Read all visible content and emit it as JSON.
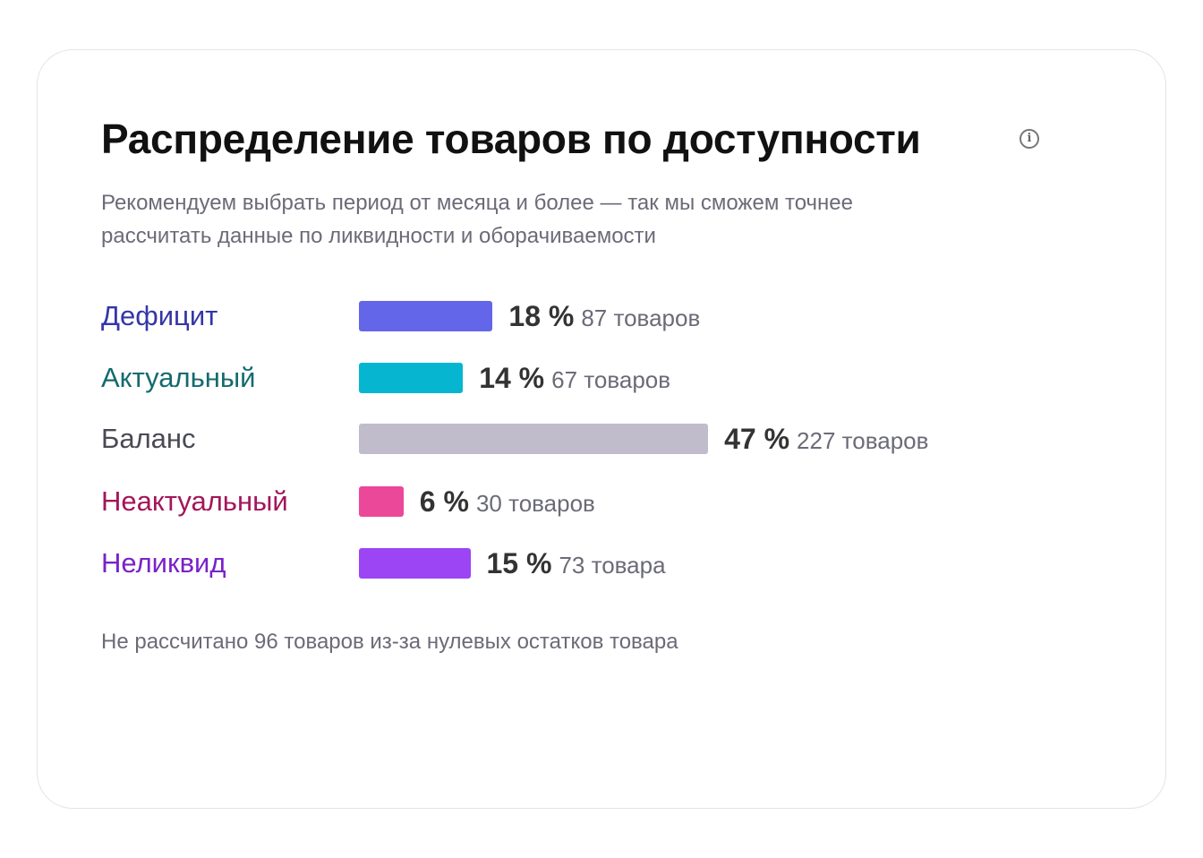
{
  "chart_data": {
    "type": "bar",
    "orientation": "horizontal",
    "title": "Распределение товаров по доступности",
    "subtitle": "Рекомендуем выбрать период от месяца и более — так мы сможем точнее рассчитать данные по ликвидности и оборачиваемости",
    "categories": [
      "Дефицит",
      "Актуальный",
      "Баланс",
      "Неактуальный",
      "Неликвид"
    ],
    "values": [
      18,
      14,
      47,
      6,
      15
    ],
    "pct_labels": [
      "18 %",
      "14 %",
      "47 %",
      "6 %",
      "15 %"
    ],
    "count_labels": [
      "87 товаров",
      "67 товаров",
      "227 товаров",
      "30 товаров",
      "73 товара"
    ],
    "counts": [
      87,
      67,
      227,
      30,
      73
    ],
    "bar_colors": [
      "#6366e8",
      "#06b6d0",
      "#c0bccb",
      "#ec4899",
      "#9b45f5"
    ],
    "label_colors": [
      "#3535a8",
      "#136b6e",
      "#4a4a55",
      "#a3165a",
      "#7a22c8"
    ],
    "footnote": "Не рассчитано 96 товаров из-за нулевых остатков товара"
  }
}
